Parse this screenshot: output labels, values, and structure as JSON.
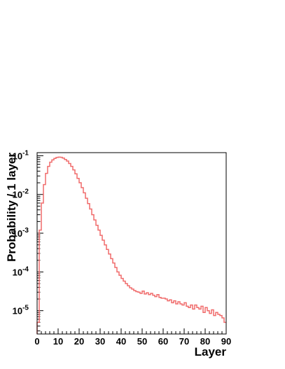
{
  "chart_data": {
    "type": "line",
    "style": "step-histogram",
    "xlabel": "Layer",
    "ylabel": "Probability / 1 layer",
    "xlim": [
      0,
      90
    ],
    "ylim": [
      2.5e-06,
      0.12
    ],
    "y_scale": "log",
    "x_ticks": [
      "0",
      "10",
      "20",
      "30",
      "40",
      "50",
      "60",
      "70",
      "80",
      "90"
    ],
    "y_ticks": [
      {
        "base": "10",
        "exp": "-1",
        "value": 0.1
      },
      {
        "base": "10",
        "exp": "-2",
        "value": 0.01
      },
      {
        "base": "10",
        "exp": "-3",
        "value": 0.001
      },
      {
        "base": "10",
        "exp": "-4",
        "value": 0.0001
      },
      {
        "base": "10",
        "exp": "-5",
        "value": 1e-05
      }
    ],
    "grid": false,
    "line_color": "#f06b6b",
    "series": [
      {
        "x": [
          0,
          1,
          2,
          3,
          4,
          5,
          6,
          7,
          8,
          9,
          10,
          11,
          12,
          13,
          14,
          15,
          16,
          17,
          18,
          19,
          20,
          21,
          22,
          23,
          24,
          25,
          26,
          27,
          28,
          29,
          30,
          31,
          32,
          33,
          34,
          35,
          36,
          37,
          38,
          39,
          40,
          41,
          42,
          43,
          44,
          45,
          46,
          47,
          48,
          49,
          50,
          51,
          52,
          53,
          54,
          55,
          56,
          57,
          58,
          59,
          60,
          61,
          62,
          63,
          64,
          65,
          66,
          67,
          68,
          69,
          70,
          71,
          72,
          73,
          74,
          75,
          76,
          77,
          78,
          79,
          80,
          81,
          82,
          83,
          84,
          85,
          86,
          87,
          88,
          89
        ],
        "y": [
          5e-06,
          0.0012,
          0.006,
          0.018,
          0.035,
          0.053,
          0.068,
          0.078,
          0.085,
          0.09,
          0.092,
          0.091,
          0.087,
          0.08,
          0.073,
          0.063,
          0.053,
          0.043,
          0.034,
          0.026,
          0.02,
          0.015,
          0.011,
          0.008,
          0.0058,
          0.0042,
          0.003,
          0.0022,
          0.0016,
          0.0012,
          0.00088,
          0.00066,
          0.0005,
          0.00038,
          0.00029,
          0.00022,
          0.00017,
          0.00013,
          0.0001,
          8.2e-05,
          6.8e-05,
          5.8e-05,
          5e-05,
          4.4e-05,
          3.9e-05,
          3.6e-05,
          3.3e-05,
          3.1e-05,
          3e-05,
          2.8e-05,
          3.2e-05,
          2.7e-05,
          2.9e-05,
          2.6e-05,
          2.8e-05,
          2.5e-05,
          2.3e-05,
          2.6e-05,
          2.2e-05,
          2.1e-05,
          2.1e-05,
          2e-05,
          1.8e-05,
          1.9e-05,
          1.6e-05,
          1.8e-05,
          1.5e-05,
          1.7e-05,
          1.5e-05,
          1.4e-05,
          1.6e-05,
          1.3e-05,
          1.2e-05,
          1.4e-05,
          1.1e-05,
          1.4e-05,
          1.2e-05,
          1.1e-05,
          1.3e-05,
          9e-06,
          1.2e-05,
          1e-05,
          8.5e-06,
          1.05e-05,
          7.5e-06,
          9e-06,
          8e-06,
          7.5e-06,
          6.5e-06,
          5e-06
        ]
      }
    ]
  }
}
